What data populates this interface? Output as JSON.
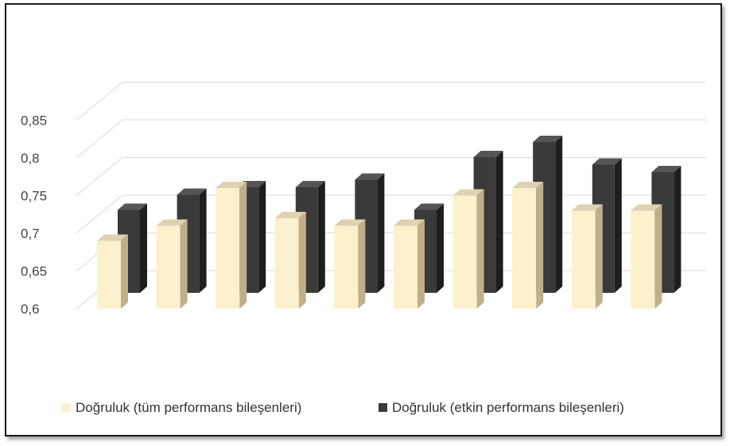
{
  "chart_data": {
    "type": "bar",
    "title": "",
    "xlabel": "",
    "ylabel": "",
    "ylim": [
      0.6,
      0.85
    ],
    "yticks": [
      "0,6",
      "0,65",
      "0,7",
      "0,75",
      "0,8",
      "0,85"
    ],
    "ytick_values": [
      0.6,
      0.65,
      0.7,
      0.75,
      0.8,
      0.85
    ],
    "categories": [
      "",
      "",
      "",
      "",
      "",
      "",
      "",
      "",
      "",
      ""
    ],
    "grid": true,
    "legend_position": "bottom",
    "series": [
      {
        "name": "Doğruluk (tüm performans bileşenleri)",
        "color": "#fdf0cc",
        "values": [
          0.69,
          0.71,
          0.76,
          0.72,
          0.71,
          0.71,
          0.75,
          0.76,
          0.73,
          0.73
        ]
      },
      {
        "name": "Doğruluk (etkin performans bileşenleri)",
        "color": "#3a3a3a",
        "values": [
          0.71,
          0.73,
          0.74,
          0.74,
          0.75,
          0.71,
          0.78,
          0.8,
          0.77,
          0.76
        ]
      }
    ]
  }
}
